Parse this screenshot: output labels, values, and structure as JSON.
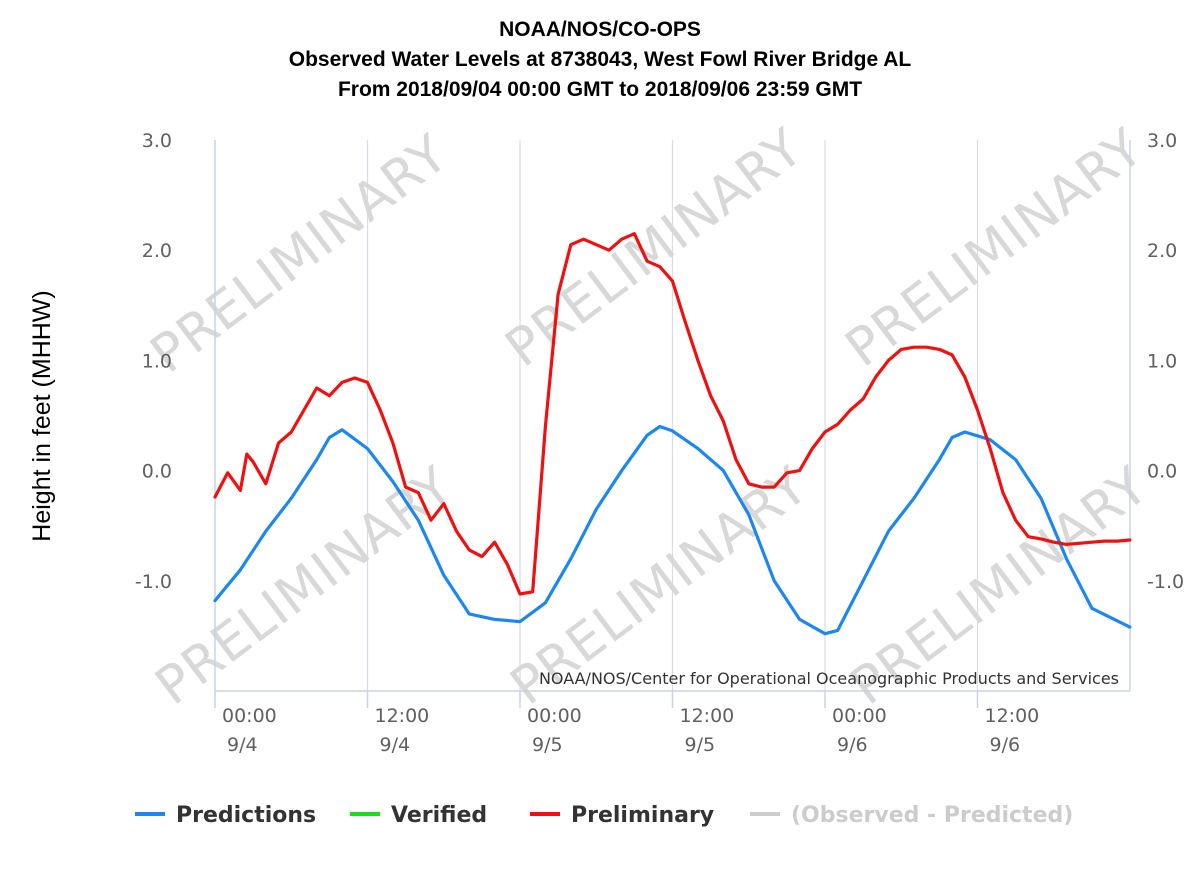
{
  "chart_data": {
    "type": "line",
    "title": [
      "NOAA/NOS/CO-OPS",
      "Observed Water Levels at 8738043, West Fowl River Bridge AL",
      "From 2018/09/04 00:00 GMT to 2018/09/06 23:59 GMT"
    ],
    "ylabel": "Height in feet (MHHW)",
    "ylim": [
      -2.0,
      3.0
    ],
    "yticks": [
      {
        "value": 3.0,
        "label": "3.0"
      },
      {
        "value": 2.0,
        "label": "2.0"
      },
      {
        "value": 1.0,
        "label": "1.0"
      },
      {
        "value": 0.0,
        "label": "0.0"
      },
      {
        "value": -1.0,
        "label": "-1.0"
      }
    ],
    "xlim": [
      "2018-09-04 00:00",
      "2018-09-06 23:59"
    ],
    "xticks": [
      {
        "time": "2018-09-04 00:00",
        "line1": "00:00",
        "line2": "9/4"
      },
      {
        "time": "2018-09-04 12:00",
        "line1": "12:00",
        "line2": "9/4"
      },
      {
        "time": "2018-09-05 00:00",
        "line1": "00:00",
        "line2": "9/5"
      },
      {
        "time": "2018-09-05 12:00",
        "line1": "12:00",
        "line2": "9/5"
      },
      {
        "time": "2018-09-06 00:00",
        "line1": "00:00",
        "line2": "9/6"
      },
      {
        "time": "2018-09-06 12:00",
        "line1": "12:00",
        "line2": "9/6"
      }
    ],
    "grid": true,
    "legend_position": "bottom",
    "credit": "NOAA/NOS/Center for Operational Oceanographic Products and Services",
    "watermark": "PRELIMINARY",
    "series": [
      {
        "name": "Predictions",
        "color": "#1c87f0",
        "x": [
          "2018-09-04 00:00",
          "2018-09-04 02:00",
          "2018-09-04 04:00",
          "2018-09-04 06:00",
          "2018-09-04 08:00",
          "2018-09-04 09:00",
          "2018-09-04 10:00",
          "2018-09-04 12:00",
          "2018-09-04 14:00",
          "2018-09-04 16:00",
          "2018-09-04 18:00",
          "2018-09-04 20:00",
          "2018-09-04 22:00",
          "2018-09-05 00:00",
          "2018-09-05 02:00",
          "2018-09-05 04:00",
          "2018-09-05 06:00",
          "2018-09-05 08:00",
          "2018-09-05 10:00",
          "2018-09-05 11:00",
          "2018-09-05 12:00",
          "2018-09-05 14:00",
          "2018-09-05 16:00",
          "2018-09-05 18:00",
          "2018-09-05 20:00",
          "2018-09-05 22:00",
          "2018-09-06 00:00",
          "2018-09-06 01:00",
          "2018-09-06 03:00",
          "2018-09-06 05:00",
          "2018-09-06 07:00",
          "2018-09-06 09:00",
          "2018-09-06 10:00",
          "2018-09-06 11:00",
          "2018-09-06 13:00",
          "2018-09-06 15:00",
          "2018-09-06 17:00",
          "2018-09-06 19:00",
          "2018-09-06 21:00",
          "2018-09-06 23:59"
        ],
        "values": [
          -1.18,
          -0.9,
          -0.55,
          -0.25,
          0.1,
          0.3,
          0.37,
          0.2,
          -0.1,
          -0.45,
          -0.95,
          -1.3,
          -1.35,
          -1.37,
          -1.2,
          -0.8,
          -0.35,
          0.0,
          0.32,
          0.4,
          0.36,
          0.2,
          0.0,
          -0.4,
          -1.0,
          -1.35,
          -1.48,
          -1.45,
          -1.0,
          -0.55,
          -0.25,
          0.1,
          0.3,
          0.35,
          0.28,
          0.1,
          -0.25,
          -0.8,
          -1.25,
          -1.42
        ]
      },
      {
        "name": "Verified",
        "color": "#18e018",
        "x": [],
        "values": []
      },
      {
        "name": "Preliminary",
        "color": "#f01010",
        "x": [
          "2018-09-04 00:00",
          "2018-09-04 01:00",
          "2018-09-04 02:00",
          "2018-09-04 02:30",
          "2018-09-04 03:00",
          "2018-09-04 04:00",
          "2018-09-04 05:00",
          "2018-09-04 06:00",
          "2018-09-04 07:00",
          "2018-09-04 08:00",
          "2018-09-04 09:00",
          "2018-09-04 10:00",
          "2018-09-04 11:00",
          "2018-09-04 12:00",
          "2018-09-04 13:00",
          "2018-09-04 14:00",
          "2018-09-04 15:00",
          "2018-09-04 16:00",
          "2018-09-04 17:00",
          "2018-09-04 18:00",
          "2018-09-04 19:00",
          "2018-09-04 20:00",
          "2018-09-04 21:00",
          "2018-09-04 22:00",
          "2018-09-04 23:00",
          "2018-09-05 00:00",
          "2018-09-05 01:00",
          "2018-09-05 02:00",
          "2018-09-05 03:00",
          "2018-09-05 04:00",
          "2018-09-05 05:00",
          "2018-09-05 06:00",
          "2018-09-05 07:00",
          "2018-09-05 08:00",
          "2018-09-05 09:00",
          "2018-09-05 10:00",
          "2018-09-05 11:00",
          "2018-09-05 12:00",
          "2018-09-05 13:00",
          "2018-09-05 14:00",
          "2018-09-05 15:00",
          "2018-09-05 16:00",
          "2018-09-05 17:00",
          "2018-09-05 18:00",
          "2018-09-05 19:00",
          "2018-09-05 20:00",
          "2018-09-05 21:00",
          "2018-09-05 22:00",
          "2018-09-05 23:00",
          "2018-09-06 00:00",
          "2018-09-06 01:00",
          "2018-09-06 02:00",
          "2018-09-06 03:00",
          "2018-09-06 04:00",
          "2018-09-06 05:00",
          "2018-09-06 06:00",
          "2018-09-06 07:00",
          "2018-09-06 08:00",
          "2018-09-06 09:00",
          "2018-09-06 10:00",
          "2018-09-06 11:00",
          "2018-09-06 12:00",
          "2018-09-06 13:00",
          "2018-09-06 14:00",
          "2018-09-06 15:00",
          "2018-09-06 16:00",
          "2018-09-06 17:00",
          "2018-09-06 18:00",
          "2018-09-06 19:00",
          "2018-09-06 20:00",
          "2018-09-06 21:00",
          "2018-09-06 22:00",
          "2018-09-06 23:00",
          "2018-09-06 23:59"
        ],
        "values": [
          -0.24,
          -0.02,
          -0.18,
          0.15,
          0.08,
          -0.12,
          0.25,
          0.35,
          0.55,
          0.75,
          0.68,
          0.8,
          0.84,
          0.8,
          0.55,
          0.25,
          -0.15,
          -0.2,
          -0.45,
          -0.3,
          -0.55,
          -0.72,
          -0.78,
          -0.65,
          -0.85,
          -1.12,
          -1.1,
          0.4,
          1.6,
          2.05,
          2.1,
          2.05,
          2.0,
          2.1,
          2.15,
          1.9,
          1.85,
          1.72,
          1.35,
          1.0,
          0.68,
          0.45,
          0.1,
          -0.12,
          -0.15,
          -0.15,
          -0.02,
          0.0,
          0.2,
          0.35,
          0.42,
          0.55,
          0.65,
          0.85,
          1.0,
          1.1,
          1.12,
          1.12,
          1.1,
          1.05,
          0.85,
          0.55,
          0.2,
          -0.2,
          -0.45,
          -0.6,
          -0.62,
          -0.65,
          -0.67,
          -0.66,
          -0.65,
          -0.64,
          -0.64,
          -0.63
        ]
      },
      {
        "name": "(Observed - Predicted)",
        "color": "#cccccc",
        "x": [],
        "values": []
      }
    ]
  }
}
